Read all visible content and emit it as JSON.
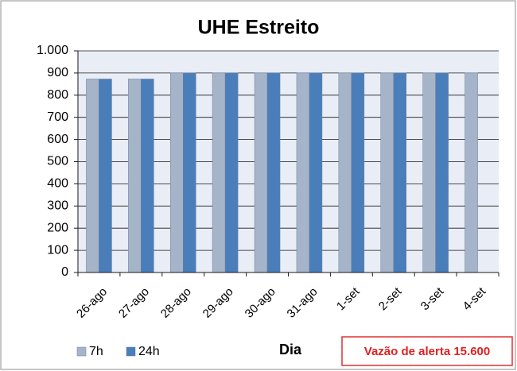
{
  "chart_data": {
    "type": "bar",
    "title": "UHE Estreito",
    "x_label": "Dia",
    "categories": [
      "26-ago",
      "27-ago",
      "28-ago",
      "29-ago",
      "30-ago",
      "31-ago",
      "1-set",
      "2-set",
      "3-set",
      "4-set"
    ],
    "series": [
      {
        "name": "7h",
        "color": "#a6b4c9",
        "values": [
          873,
          873,
          900,
          900,
          900,
          900,
          900,
          900,
          900,
          900
        ]
      },
      {
        "name": "24h",
        "color": "#4a7ebb",
        "values": [
          873,
          873,
          900,
          900,
          900,
          900,
          900,
          900,
          900,
          null
        ]
      }
    ],
    "ylim": [
      0,
      1000
    ],
    "yticks": [
      0,
      100,
      200,
      300,
      400,
      500,
      600,
      700,
      800,
      900,
      {
        "value": 1000,
        "label": "1.000"
      }
    ],
    "grid": true,
    "annotation": "Vazão de alerta 15.600"
  }
}
